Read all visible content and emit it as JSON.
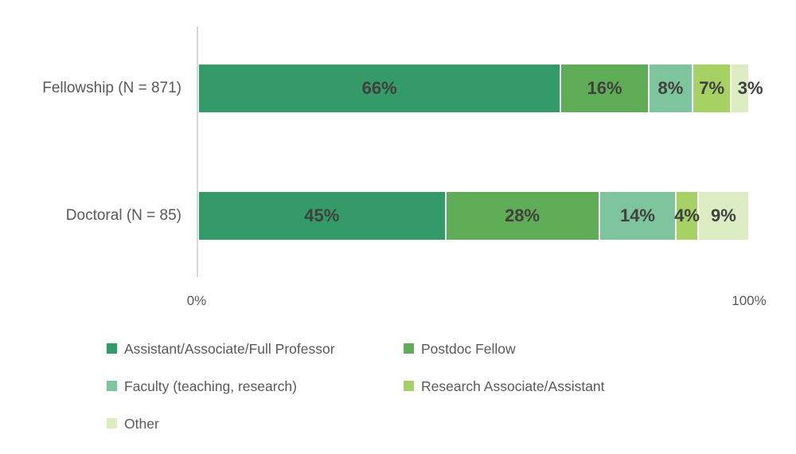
{
  "chart_data": {
    "type": "bar",
    "variant": "horizontal-stacked",
    "title": "",
    "categories": [
      "Fellowship (N = 871)",
      "Doctoral (N = 85)"
    ],
    "series": [
      {
        "name": "Assistant/Associate/Full Professor",
        "color": "#349a67",
        "values": [
          66,
          45
        ]
      },
      {
        "name": "Postdoc Fellow",
        "color": "#5fad56",
        "values": [
          16,
          28
        ]
      },
      {
        "name": "Faculty (teaching, research)",
        "color": "#7ec49c",
        "values": [
          8,
          14
        ]
      },
      {
        "name": "Research Associate/Assistant",
        "color": "#a5d165",
        "values": [
          7,
          4
        ]
      },
      {
        "name": "Other",
        "color": "#dcedc4",
        "values": [
          3,
          9
        ]
      }
    ],
    "value_suffix": "%",
    "xlim": [
      0,
      100
    ],
    "x_ticks": [
      "0%",
      "100%"
    ],
    "grid": false,
    "data_label_color": "#404040",
    "text_color": "#595959",
    "axis_line_color": "#d9d9d9",
    "legend_position": "bottom-left",
    "legend_rows": [
      [
        "Assistant/Associate/Full Professor",
        "Postdoc Fellow"
      ],
      [
        "Faculty (teaching, research)",
        "Research Associate/Assistant"
      ],
      [
        "Other"
      ]
    ],
    "label_dx": [
      [
        0,
        0,
        0,
        0,
        13
      ],
      [
        0,
        0,
        0,
        0,
        0
      ]
    ]
  }
}
